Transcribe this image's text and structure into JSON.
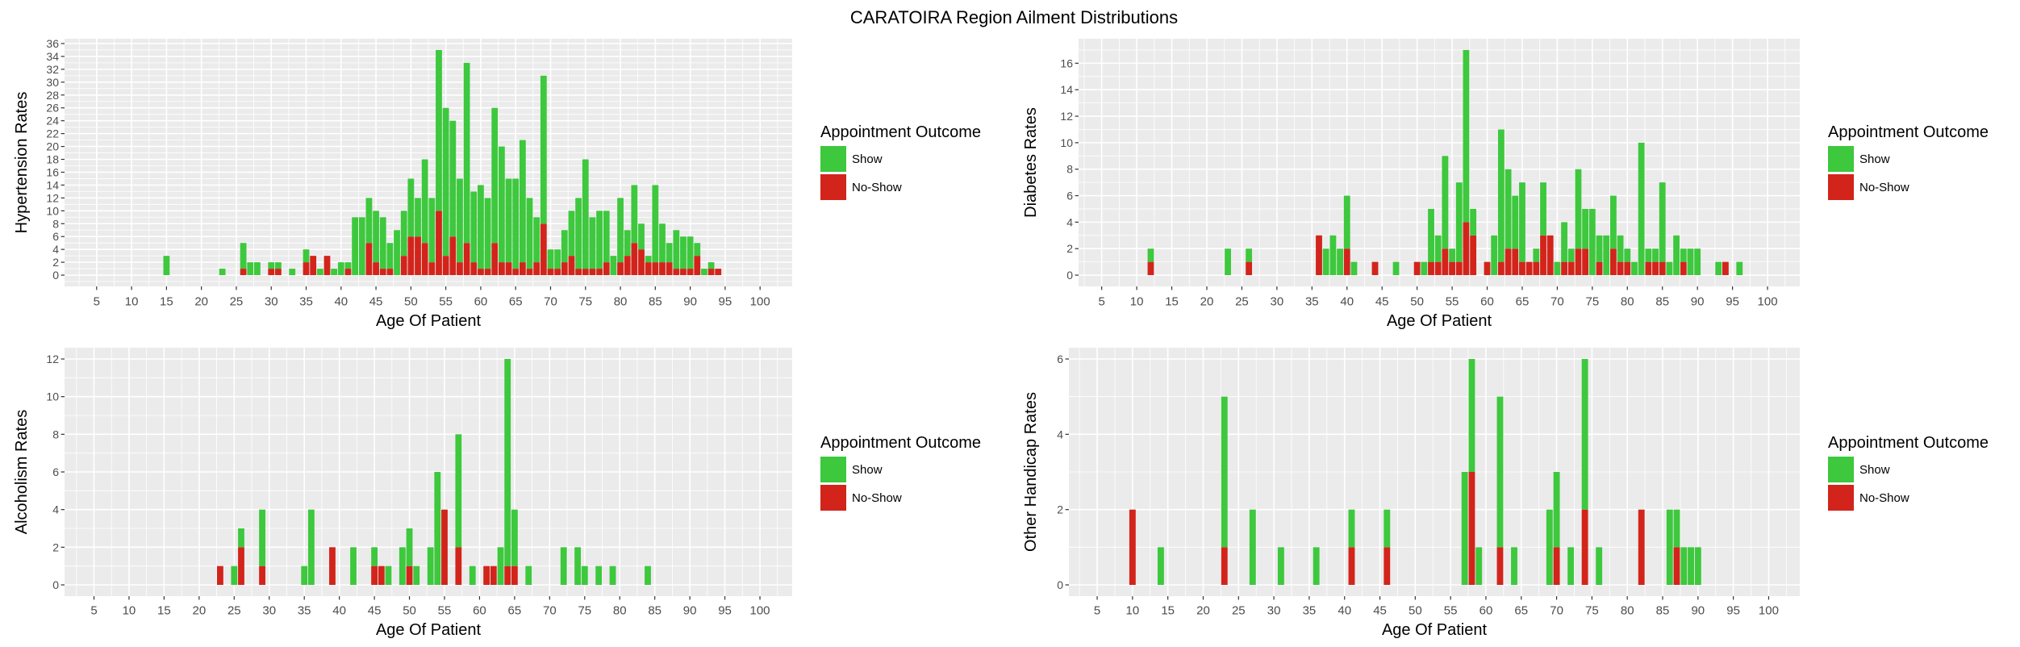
{
  "title": "CARATOIRA Region Ailment Distributions",
  "colors": {
    "show": "#3DC83D",
    "no_show": "#D2241B",
    "panel": "#EBEBEB",
    "grid": "#FFFFFF",
    "tick_text": "#4D4D4D",
    "tick_mark": "#333333"
  },
  "chart_data": [
    {
      "type": "bar",
      "stacked": true,
      "xlabel": "Age Of Patient",
      "ylabel": "Hypertension Rates",
      "xlim": [
        0.4,
        104.6
      ],
      "ylim": [
        -1.75,
        36.75
      ],
      "xticks": [
        5,
        10,
        15,
        20,
        25,
        30,
        35,
        40,
        45,
        50,
        55,
        60,
        65,
        70,
        75,
        80,
        85,
        90,
        95,
        100
      ],
      "yticks": [
        0,
        2,
        4,
        6,
        8,
        10,
        12,
        14,
        16,
        18,
        20,
        22,
        24,
        26,
        28,
        30,
        32,
        34,
        36
      ],
      "grid": true,
      "legend": {
        "title": "Appointment Outcome",
        "position": "right"
      },
      "x": [
        15,
        23,
        26,
        27,
        28,
        30,
        31,
        33,
        35,
        36,
        37,
        38,
        39,
        40,
        41,
        42,
        43,
        44,
        45,
        46,
        47,
        48,
        49,
        50,
        51,
        52,
        53,
        54,
        55,
        56,
        57,
        58,
        59,
        60,
        61,
        62,
        63,
        64,
        65,
        66,
        67,
        68,
        69,
        70,
        71,
        72,
        73,
        74,
        75,
        76,
        77,
        78,
        79,
        80,
        81,
        82,
        83,
        84,
        85,
        86,
        87,
        88,
        89,
        90,
        91,
        92,
        93,
        94
      ],
      "series": [
        {
          "name": "Show",
          "color": "#3DC83D",
          "values": [
            3,
            1,
            4,
            2,
            2,
            1,
            1,
            1,
            2,
            0,
            1,
            0,
            1,
            2,
            1,
            9,
            9,
            7,
            8,
            8,
            4,
            7,
            7,
            9,
            6,
            13,
            10,
            25,
            23,
            18,
            13,
            28,
            11,
            13,
            11,
            21,
            18,
            13,
            14,
            19,
            11,
            7,
            23,
            3,
            3,
            5,
            7,
            11,
            17,
            8,
            9,
            8,
            3,
            10,
            4,
            9,
            4,
            1,
            12,
            6,
            3,
            6,
            5,
            5,
            2,
            1,
            1,
            0
          ]
        },
        {
          "name": "No-Show",
          "color": "#D2241B",
          "values": [
            0,
            0,
            1,
            0,
            0,
            1,
            1,
            0,
            2,
            3,
            0,
            3,
            0,
            0,
            1,
            0,
            0,
            5,
            2,
            1,
            1,
            0,
            3,
            6,
            6,
            5,
            2,
            10,
            3,
            6,
            2,
            5,
            2,
            1,
            1,
            5,
            2,
            2,
            1,
            2,
            1,
            2,
            8,
            1,
            1,
            2,
            3,
            1,
            1,
            1,
            1,
            2,
            0,
            2,
            3,
            5,
            4,
            2,
            2,
            2,
            2,
            1,
            1,
            1,
            3,
            0,
            1,
            1
          ]
        }
      ]
    },
    {
      "type": "bar",
      "stacked": true,
      "xlabel": "Age Of Patient",
      "ylabel": "Diabetes Rates",
      "xlim": [
        1.7,
        104.6
      ],
      "ylim": [
        -0.85,
        17.85
      ],
      "xticks": [
        5,
        10,
        15,
        20,
        25,
        30,
        35,
        40,
        45,
        50,
        55,
        60,
        65,
        70,
        75,
        80,
        85,
        90,
        95,
        100
      ],
      "yticks": [
        0,
        2,
        4,
        6,
        8,
        10,
        12,
        14,
        16
      ],
      "grid": true,
      "legend": {
        "title": "Appointment Outcome",
        "position": "right"
      },
      "x": [
        12,
        23,
        26,
        36,
        37,
        38,
        39,
        40,
        41,
        44,
        47,
        50,
        51,
        52,
        53,
        54,
        55,
        56,
        57,
        58,
        60,
        61,
        62,
        63,
        64,
        65,
        66,
        67,
        68,
        69,
        70,
        71,
        72,
        73,
        74,
        75,
        76,
        77,
        78,
        79,
        80,
        81,
        82,
        83,
        84,
        85,
        86,
        87,
        88,
        89,
        90,
        93,
        94,
        96
      ],
      "series": [
        {
          "name": "Show",
          "color": "#3DC83D",
          "values": [
            1,
            2,
            1,
            0,
            2,
            3,
            2,
            4,
            1,
            0,
            1,
            0,
            1,
            4,
            2,
            7,
            1,
            6,
            13,
            2,
            0,
            3,
            10,
            6,
            4,
            6,
            0,
            1,
            4,
            0,
            1,
            3,
            1,
            6,
            3,
            5,
            2,
            3,
            4,
            2,
            1,
            1,
            10,
            1,
            1,
            6,
            1,
            3,
            1,
            2,
            2,
            1,
            0,
            1
          ]
        },
        {
          "name": "No-Show",
          "color": "#D2241B",
          "values": [
            1,
            0,
            1,
            3,
            0,
            0,
            0,
            2,
            0,
            1,
            0,
            1,
            0,
            1,
            1,
            2,
            1,
            1,
            4,
            3,
            1,
            0,
            1,
            2,
            2,
            1,
            1,
            1,
            3,
            3,
            0,
            1,
            1,
            2,
            2,
            0,
            1,
            0,
            2,
            1,
            1,
            0,
            0,
            1,
            1,
            1,
            0,
            0,
            1,
            0,
            0,
            0,
            1,
            0
          ]
        }
      ]
    },
    {
      "type": "bar",
      "stacked": true,
      "xlabel": "Age Of Patient",
      "ylabel": "Alcoholism Rates",
      "xlim": [
        0.8,
        104.6
      ],
      "ylim": [
        -0.6,
        12.6
      ],
      "xticks": [
        5,
        10,
        15,
        20,
        25,
        30,
        35,
        40,
        45,
        50,
        55,
        60,
        65,
        70,
        75,
        80,
        85,
        90,
        95,
        100
      ],
      "yticks": [
        0,
        2,
        4,
        6,
        8,
        10,
        12
      ],
      "grid": true,
      "legend": {
        "title": "Appointment Outcome",
        "position": "right"
      },
      "x": [
        23,
        25,
        26,
        29,
        35,
        36,
        39,
        42,
        45,
        46,
        47,
        49,
        50,
        51,
        53,
        54,
        55,
        57,
        59,
        61,
        62,
        63,
        64,
        65,
        67,
        72,
        74,
        75,
        77,
        79,
        84
      ],
      "series": [
        {
          "name": "Show",
          "color": "#3DC83D",
          "values": [
            0,
            1,
            1,
            3,
            1,
            4,
            0,
            2,
            1,
            0,
            1,
            2,
            2,
            1,
            2,
            6,
            0,
            6,
            1,
            0,
            0,
            2,
            11,
            3,
            1,
            2,
            2,
            1,
            1,
            1,
            1
          ]
        },
        {
          "name": "No-Show",
          "color": "#D2241B",
          "values": [
            1,
            0,
            2,
            1,
            0,
            0,
            2,
            0,
            1,
            1,
            0,
            0,
            1,
            0,
            0,
            0,
            4,
            2,
            0,
            1,
            1,
            0,
            1,
            1,
            0,
            0,
            0,
            0,
            0,
            0,
            0
          ]
        }
      ]
    },
    {
      "type": "bar",
      "stacked": true,
      "xlabel": "Age Of Patient",
      "ylabel": "Other Handicap Rates",
      "xlim": [
        1.0,
        104.4
      ],
      "ylim": [
        -0.3,
        6.3
      ],
      "xticks": [
        5,
        10,
        15,
        20,
        25,
        30,
        35,
        40,
        45,
        50,
        55,
        60,
        65,
        70,
        75,
        80,
        85,
        90,
        95,
        100
      ],
      "yticks": [
        0,
        2,
        4,
        6
      ],
      "grid": true,
      "legend": {
        "title": "Appointment Outcome",
        "position": "right"
      },
      "x": [
        10,
        14,
        23,
        27,
        31,
        36,
        41,
        46,
        57,
        58,
        59,
        62,
        64,
        69,
        70,
        72,
        74,
        76,
        82,
        86,
        87,
        88,
        89,
        90
      ],
      "series": [
        {
          "name": "Show",
          "color": "#3DC83D",
          "values": [
            0,
            1,
            4,
            2,
            1,
            1,
            1,
            1,
            3,
            3,
            1,
            4,
            1,
            2,
            2,
            1,
            4,
            1,
            0,
            2,
            1,
            1,
            1,
            1
          ]
        },
        {
          "name": "No-Show",
          "color": "#D2241B",
          "values": [
            2,
            0,
            1,
            0,
            0,
            0,
            1,
            1,
            0,
            3,
            0,
            1,
            0,
            0,
            1,
            0,
            2,
            0,
            2,
            0,
            1,
            0,
            0,
            0
          ]
        }
      ]
    }
  ]
}
